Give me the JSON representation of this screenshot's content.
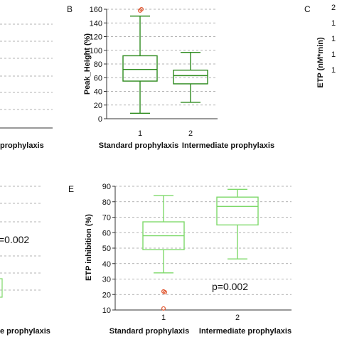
{
  "colors": {
    "box_dark": "#2e8b1e",
    "box_light": "#7ed96a",
    "outlier": "#e0522a",
    "grid": "#9a9a9a",
    "axis": "#333333"
  },
  "chart_data": [
    {
      "type": "boxplot",
      "panel_letter": "",
      "fragment": "left-top",
      "ylabel": "",
      "categories": [
        "",
        "prophylaxis"
      ],
      "tick_numbers": [],
      "ylim": [
        0,
        160
      ],
      "grid": true,
      "boxes": []
    },
    {
      "type": "boxplot",
      "panel_letter": "B",
      "ylabel": "Peak_Height (%)",
      "tick_numbers": [
        "1",
        "2"
      ],
      "categories": [
        "Standard prophylaxis",
        "Intermediate prophylaxis"
      ],
      "ylim": [
        0,
        160
      ],
      "yticks": [
        0,
        20,
        40,
        60,
        80,
        100,
        120,
        140,
        160
      ],
      "grid": true,
      "boxes": [
        {
          "min": 8,
          "q1": 55,
          "median": 72,
          "q3": 92,
          "max": 150,
          "outliers": [
            158,
            160
          ],
          "color": "dark"
        },
        {
          "min": 24,
          "q1": 51,
          "median": 63,
          "q3": 71,
          "max": 97,
          "outliers": [],
          "color": "dark"
        }
      ]
    },
    {
      "type": "boxplot",
      "panel_letter": "C",
      "ylabel": "ETP (nM*min)",
      "fragment": "right-top",
      "y_tick_fragments": [
        "2",
        "1",
        "1",
        "1",
        "1"
      ],
      "grid": true
    },
    {
      "type": "boxplot",
      "panel_letter": "",
      "fragment": "left-bottom",
      "categories": [
        "",
        "e prophylaxis"
      ],
      "pvalue": "=0.002",
      "grid": true
    },
    {
      "type": "boxplot",
      "panel_letter": "E",
      "ylabel": "ETP inhibition (%)",
      "tick_numbers": [
        "1",
        "2"
      ],
      "categories": [
        "Standard prophylaxis",
        "Intermediate prophylaxis"
      ],
      "ylim": [
        10,
        90
      ],
      "yticks": [
        10,
        20,
        30,
        40,
        50,
        60,
        70,
        80,
        90
      ],
      "grid": true,
      "pvalue": "p=0.002",
      "boxes": [
        {
          "min": 34,
          "q1": 49,
          "median": 58,
          "q3": 67,
          "max": 84,
          "outliers": [
            22,
            21.5,
            11
          ],
          "color": "light"
        },
        {
          "min": 43,
          "q1": 65,
          "median": 77,
          "q3": 83,
          "max": 88,
          "outliers": [],
          "color": "light"
        }
      ]
    }
  ]
}
